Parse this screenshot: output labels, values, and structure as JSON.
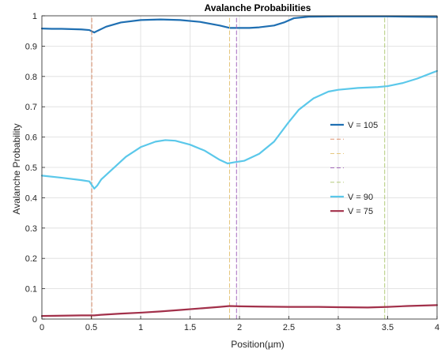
{
  "chart_data": {
    "type": "line",
    "title": "Avalanche Probabilities",
    "xlabel": "Position(µm)",
    "ylabel": "Avalanche Probability",
    "xlim": [
      0,
      4
    ],
    "ylim": [
      0,
      1
    ],
    "xticks": [
      0,
      0.5,
      1,
      1.5,
      2,
      2.5,
      3,
      3.5,
      4
    ],
    "xtick_labels": [
      "0",
      "0.5",
      "1",
      "1.5",
      "2",
      "2.5",
      "3",
      "3.5",
      "4"
    ],
    "yticks": [
      0,
      0.1,
      0.2,
      0.3,
      0.4,
      0.5,
      0.6,
      0.7,
      0.8,
      0.9,
      1
    ],
    "ytick_labels": [
      "0",
      "0.1",
      "0.2",
      "0.3",
      "0.4",
      "0.5",
      "0.6",
      "0.7",
      "0.8",
      "0.9",
      "1"
    ],
    "grid": true,
    "legend_position": "center-right",
    "series": [
      {
        "name": "V = 105",
        "color": "#1f6fb2",
        "points": [
          [
            0,
            0.958
          ],
          [
            0.1,
            0.957
          ],
          [
            0.2,
            0.957
          ],
          [
            0.3,
            0.956
          ],
          [
            0.4,
            0.955
          ],
          [
            0.48,
            0.953
          ],
          [
            0.53,
            0.945
          ],
          [
            0.56,
            0.95
          ],
          [
            0.65,
            0.964
          ],
          [
            0.8,
            0.978
          ],
          [
            1.0,
            0.986
          ],
          [
            1.2,
            0.988
          ],
          [
            1.4,
            0.986
          ],
          [
            1.6,
            0.98
          ],
          [
            1.8,
            0.968
          ],
          [
            1.9,
            0.96
          ],
          [
            2.0,
            0.96
          ],
          [
            2.1,
            0.96
          ],
          [
            2.2,
            0.962
          ],
          [
            2.35,
            0.968
          ],
          [
            2.45,
            0.978
          ],
          [
            2.55,
            0.992
          ],
          [
            2.7,
            0.997
          ],
          [
            3.0,
            0.998
          ],
          [
            3.5,
            0.998
          ],
          [
            4.0,
            0.996
          ]
        ]
      },
      {
        "name": "",
        "color": "#d9845a",
        "dashed": true,
        "points": [
          [
            0.505,
            0
          ],
          [
            0.505,
            1
          ]
        ]
      },
      {
        "name": "",
        "color": "#e3c16f",
        "dashed": true,
        "points": [
          [
            1.9,
            0
          ],
          [
            1.9,
            1
          ]
        ]
      },
      {
        "name": "",
        "color": "#9b59b6",
        "dashed": true,
        "points": [
          [
            1.97,
            0
          ],
          [
            1.97,
            1
          ]
        ]
      },
      {
        "name": "",
        "color": "#a9c46a",
        "dashed": true,
        "points": [
          [
            3.47,
            0
          ],
          [
            3.47,
            1
          ]
        ]
      },
      {
        "name": "V = 90",
        "color": "#5bc8ea",
        "points": [
          [
            0,
            0.473
          ],
          [
            0.2,
            0.466
          ],
          [
            0.4,
            0.458
          ],
          [
            0.48,
            0.454
          ],
          [
            0.53,
            0.43
          ],
          [
            0.56,
            0.44
          ],
          [
            0.6,
            0.46
          ],
          [
            0.7,
            0.49
          ],
          [
            0.85,
            0.535
          ],
          [
            1.0,
            0.567
          ],
          [
            1.15,
            0.585
          ],
          [
            1.25,
            0.59
          ],
          [
            1.35,
            0.588
          ],
          [
            1.5,
            0.575
          ],
          [
            1.65,
            0.555
          ],
          [
            1.8,
            0.525
          ],
          [
            1.88,
            0.513
          ],
          [
            1.95,
            0.517
          ],
          [
            2.05,
            0.522
          ],
          [
            2.2,
            0.545
          ],
          [
            2.35,
            0.585
          ],
          [
            2.5,
            0.65
          ],
          [
            2.6,
            0.69
          ],
          [
            2.75,
            0.728
          ],
          [
            2.9,
            0.75
          ],
          [
            3.0,
            0.756
          ],
          [
            3.2,
            0.762
          ],
          [
            3.4,
            0.765
          ],
          [
            3.5,
            0.768
          ],
          [
            3.65,
            0.778
          ],
          [
            3.8,
            0.793
          ],
          [
            3.95,
            0.812
          ],
          [
            4.0,
            0.818
          ]
        ]
      },
      {
        "name": "V = 75",
        "color": "#a2304a",
        "points": [
          [
            0,
            0.01
          ],
          [
            0.2,
            0.011
          ],
          [
            0.4,
            0.012
          ],
          [
            0.53,
            0.012
          ],
          [
            0.6,
            0.014
          ],
          [
            0.8,
            0.018
          ],
          [
            1.0,
            0.021
          ],
          [
            1.2,
            0.025
          ],
          [
            1.4,
            0.03
          ],
          [
            1.6,
            0.035
          ],
          [
            1.8,
            0.04
          ],
          [
            1.9,
            0.043
          ],
          [
            2.0,
            0.042
          ],
          [
            2.2,
            0.041
          ],
          [
            2.5,
            0.04
          ],
          [
            2.8,
            0.04
          ],
          [
            3.0,
            0.039
          ],
          [
            3.3,
            0.038
          ],
          [
            3.5,
            0.04
          ],
          [
            3.7,
            0.043
          ],
          [
            4.0,
            0.046
          ]
        ]
      }
    ]
  }
}
